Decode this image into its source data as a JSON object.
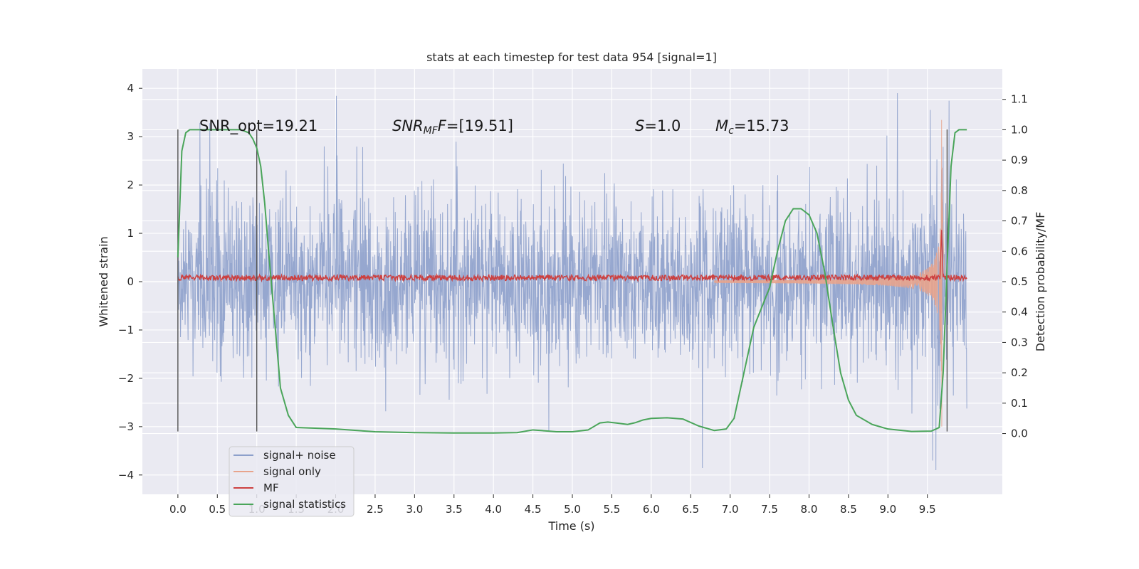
{
  "chart_data": {
    "type": "line",
    "title": "stats at each timestep for test data 954 [signal=1]",
    "xlabel": "Time (s)",
    "ylabel": "Whitened strain",
    "ylabel_right": "Detection probability/MF",
    "xlim": [
      -0.45,
      10.45
    ],
    "ylim": [
      -4.4,
      4.4
    ],
    "ylim_right": [
      -0.2,
      1.2
    ],
    "x_ticks": [
      "0.0",
      "0.5",
      "1.0",
      "1.5",
      "2.0",
      "2.5",
      "3.0",
      "3.5",
      "4.0",
      "4.5",
      "5.0",
      "5.5",
      "6.0",
      "6.5",
      "7.0",
      "7.5",
      "8.0",
      "8.5",
      "9.0",
      "9.5"
    ],
    "y_ticks": [
      "4",
      "3",
      "2",
      "1",
      "0",
      "−1",
      "−2",
      "−3",
      "−4"
    ],
    "y_ticks_right": [
      "1.1",
      "1.0",
      "0.9",
      "0.8",
      "0.7",
      "0.6",
      "0.5",
      "0.4",
      "0.3",
      "0.2",
      "0.1",
      "0.0"
    ],
    "grid": true,
    "legend_position": "lower-left",
    "annotations": {
      "snr_opt": "SNR_opt=19.21",
      "snr_mf_label": "SNR",
      "snr_mf_sub": "MF",
      "snr_mf_value": "=[19.51]",
      "s_label": "S",
      "s_value": "=1.0",
      "mc_label": "M",
      "mc_sub": "c",
      "mc_value": "=15.73"
    },
    "series": [
      {
        "name": "signal+ noise",
        "color": "#8da0cb",
        "description_amplitude": 1.3,
        "x_range": [
          0.0,
          10.0
        ]
      },
      {
        "name": "signal only",
        "color": "#e8a48c",
        "x_range": [
          6.8,
          9.75
        ],
        "peak_x": 9.68,
        "peak_y": 3.6
      },
      {
        "name": "MF",
        "color": "#cc4040",
        "baseline": 0.08,
        "x_range": [
          0.0,
          10.0
        ],
        "spike_x": 9.68,
        "spike_y": 1.0
      },
      {
        "name": "signal statistics",
        "color": "#4aa55a",
        "x": [
          0.0,
          0.05,
          0.1,
          0.15,
          0.3,
          0.5,
          0.7,
          0.8,
          0.9,
          0.95,
          1.0,
          1.05,
          1.1,
          1.15,
          1.2,
          1.25,
          1.3,
          1.4,
          1.5,
          2.0,
          2.5,
          3.0,
          3.5,
          4.0,
          4.3,
          4.5,
          4.6,
          4.8,
          5.0,
          5.2,
          5.35,
          5.45,
          5.55,
          5.7,
          5.8,
          5.9,
          6.0,
          6.2,
          6.4,
          6.6,
          6.8,
          6.95,
          7.05,
          7.15,
          7.3,
          7.5,
          7.6,
          7.7,
          7.8,
          7.9,
          8.0,
          8.1,
          8.2,
          8.3,
          8.4,
          8.5,
          8.6,
          8.8,
          9.0,
          9.3,
          9.55,
          9.65,
          9.7,
          9.75,
          9.8,
          9.85,
          9.9,
          9.95,
          10.0
        ],
        "y": [
          0.58,
          0.93,
          0.99,
          1.0,
          1.0,
          1.0,
          1.0,
          1.0,
          0.99,
          0.97,
          0.94,
          0.88,
          0.76,
          0.6,
          0.45,
          0.3,
          0.15,
          0.06,
          0.02,
          0.015,
          0.006,
          0.003,
          0.002,
          0.002,
          0.003,
          0.012,
          0.01,
          0.006,
          0.006,
          0.012,
          0.035,
          0.038,
          0.035,
          0.03,
          0.036,
          0.045,
          0.05,
          0.052,
          0.048,
          0.025,
          0.01,
          0.015,
          0.05,
          0.17,
          0.35,
          0.48,
          0.6,
          0.7,
          0.74,
          0.74,
          0.72,
          0.66,
          0.53,
          0.36,
          0.2,
          0.11,
          0.06,
          0.03,
          0.015,
          0.007,
          0.008,
          0.02,
          0.2,
          0.55,
          0.88,
          0.99,
          1.0,
          1.0,
          1.0
        ]
      }
    ],
    "vertical_markers": [
      0.0,
      1.0,
      9.75
    ]
  }
}
